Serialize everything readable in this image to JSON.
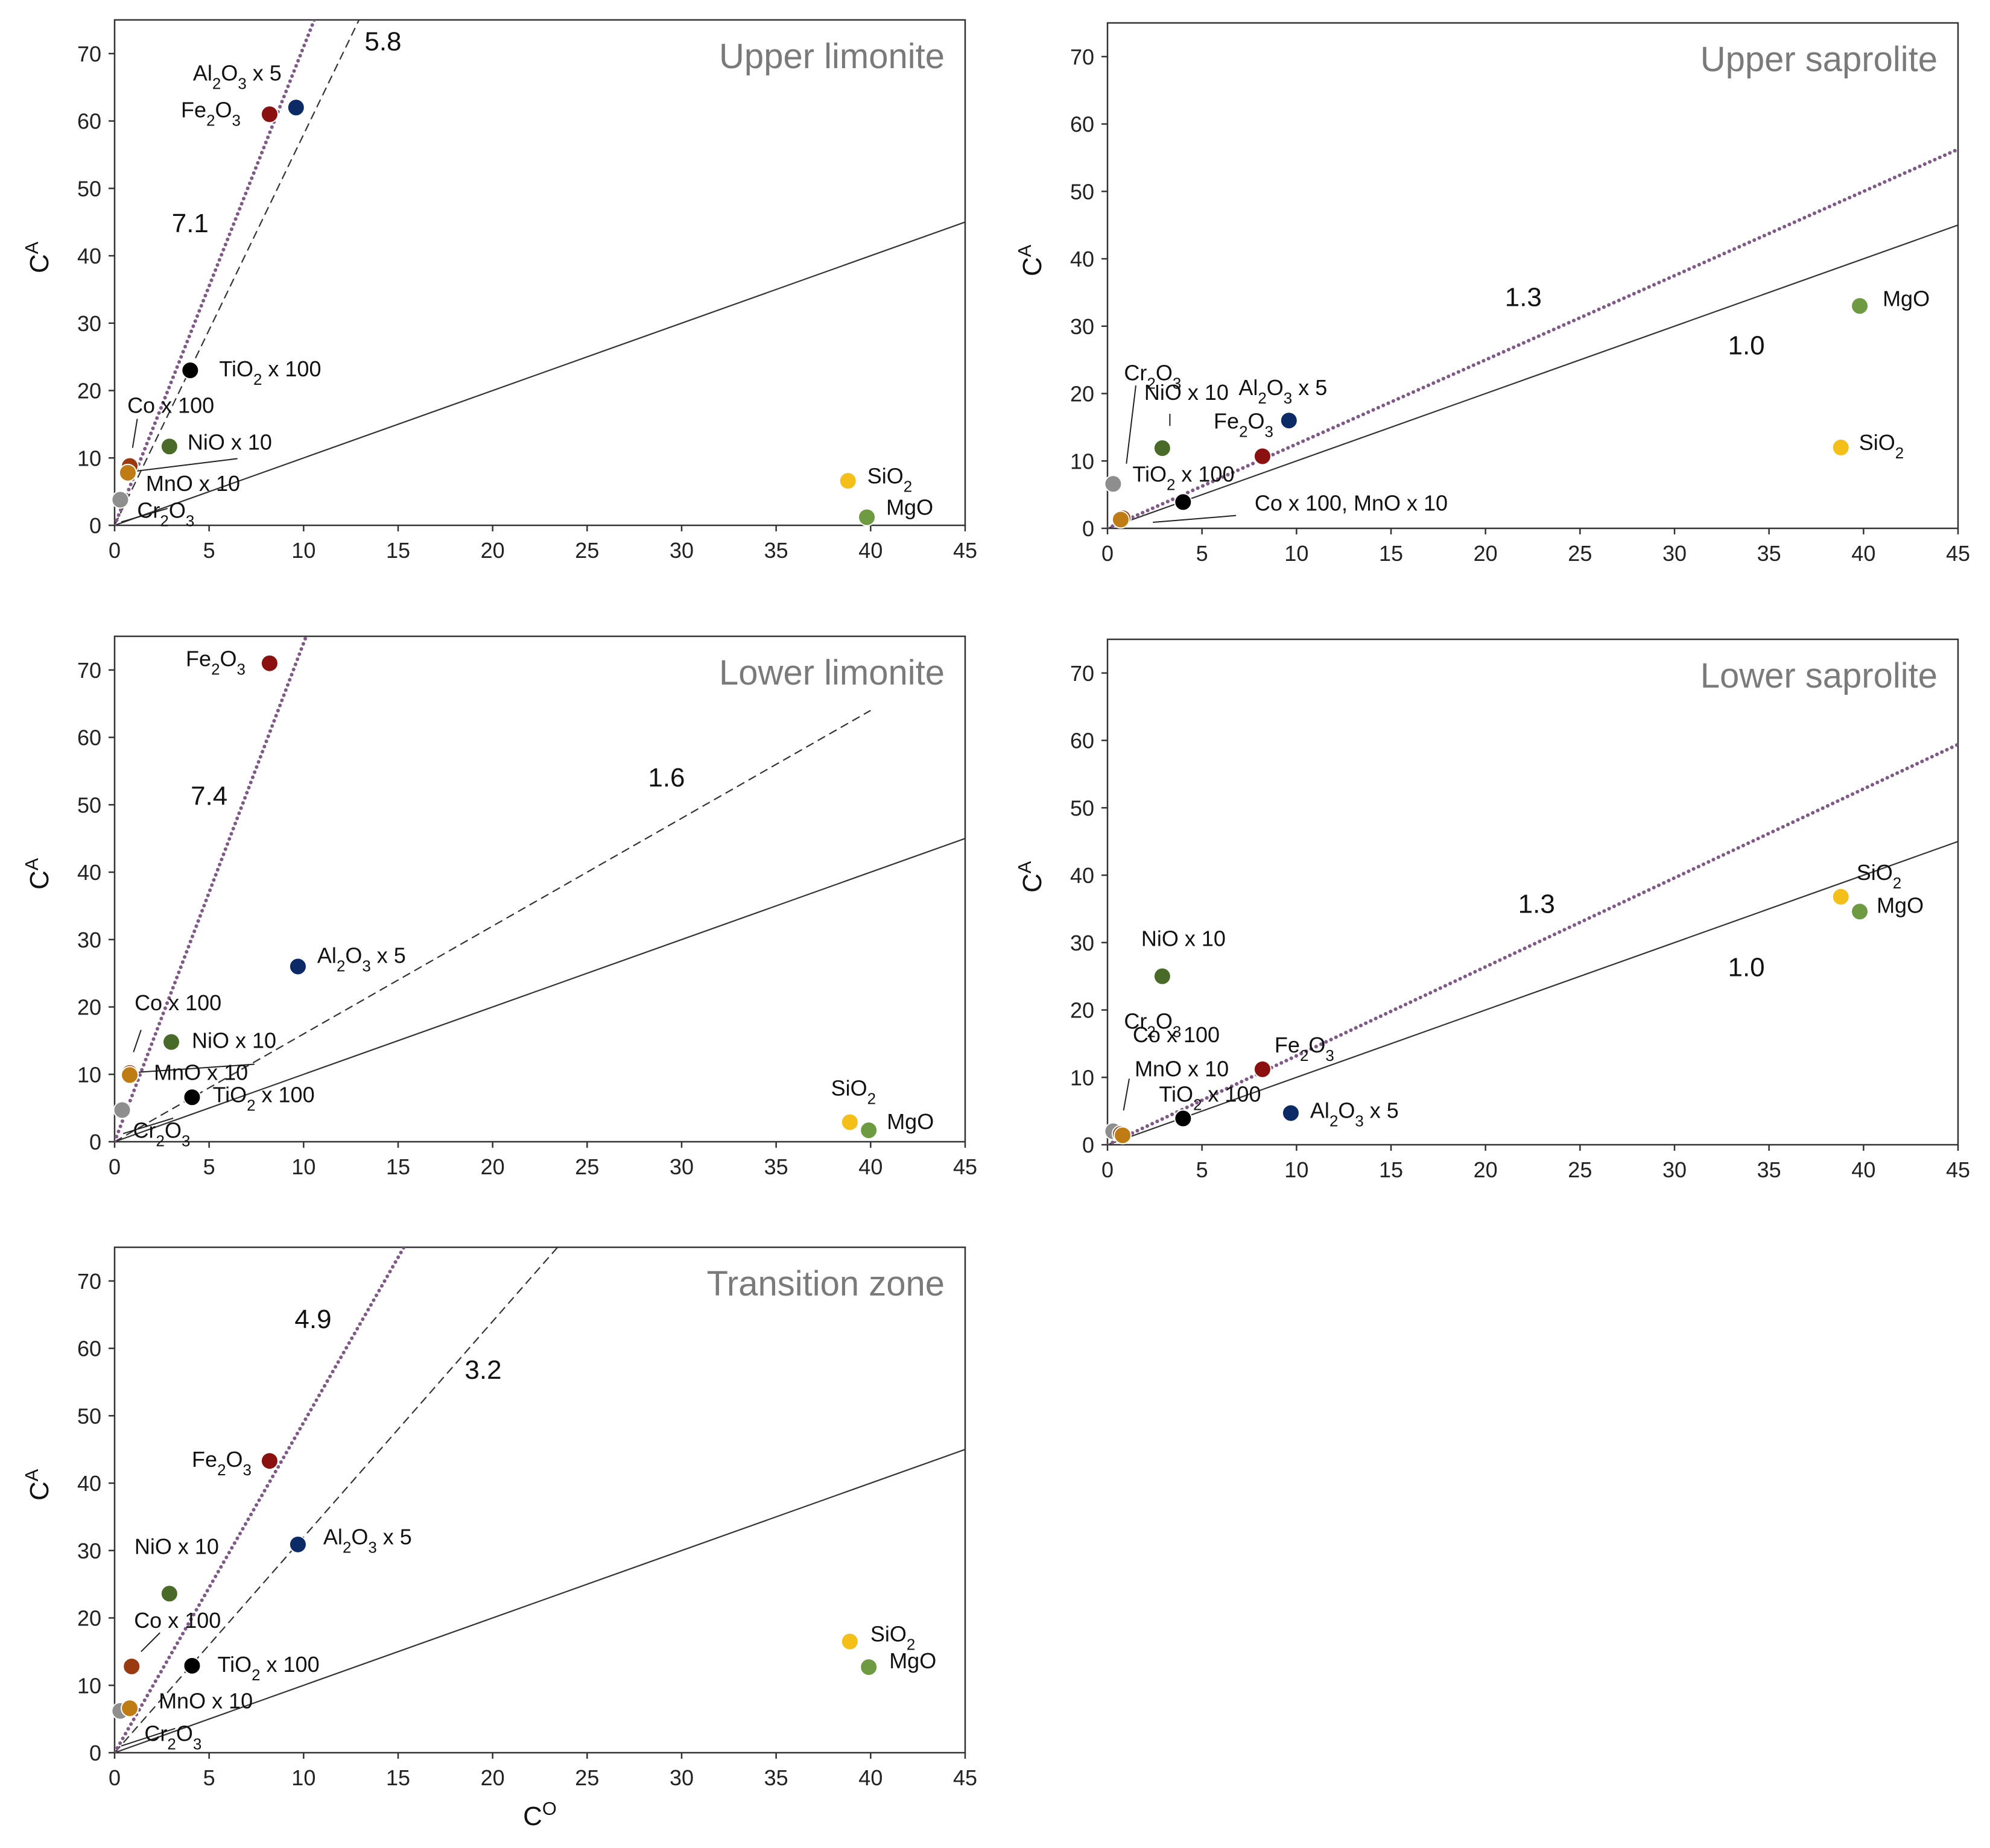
{
  "chart_data": [
    {
      "type": "scatter",
      "title": "Upper limonite",
      "xlabel": "",
      "ylabel": "CA",
      "xlim": [
        0,
        45
      ],
      "ylim": [
        0,
        75
      ],
      "xticks": [
        0,
        5,
        10,
        15,
        20,
        25,
        30,
        35,
        40,
        45
      ],
      "yticks": [
        0,
        10,
        20,
        30,
        40,
        50,
        60,
        70
      ],
      "lines": [
        {
          "style": "solid",
          "slope": 1.0,
          "label": ""
        },
        {
          "style": "dashed",
          "slope": 5.8,
          "label": "5.8"
        },
        {
          "style": "dotted",
          "slope": 7.1,
          "label": "7.1"
        }
      ],
      "points": [
        {
          "name": "Al2O3 x 5",
          "x": 9.6,
          "y": 62,
          "color": "#0b2a66",
          "label": "Al2O3 x 5"
        },
        {
          "name": "Fe2O3",
          "x": 8.2,
          "y": 61,
          "color": "#8b1010",
          "label": "Fe2O3"
        },
        {
          "name": "TiO2 x 100",
          "x": 4.0,
          "y": 23,
          "color": "#000000",
          "label": "TiO2 x 100"
        },
        {
          "name": "NiO x 10",
          "x": 2.9,
          "y": 11.7,
          "color": "#4a6a2a",
          "label": "NiO x 10"
        },
        {
          "name": "Co x 100",
          "x": 0.8,
          "y": 8.8,
          "color": "#9a3a10",
          "label": "Co x 100"
        },
        {
          "name": "MnO x 10",
          "x": 0.7,
          "y": 7.8,
          "color": "#c07c14",
          "label": "MnO x 10"
        },
        {
          "name": "Cr2O3",
          "x": 0.3,
          "y": 3.8,
          "color": "#8e8e8e",
          "label": "Cr2O3"
        },
        {
          "name": "SiO2",
          "x": 38.8,
          "y": 6.6,
          "color": "#f5bf1a",
          "label": "SiO2"
        },
        {
          "name": "MgO",
          "x": 39.8,
          "y": 1.2,
          "color": "#6e9a42",
          "label": "MgO"
        }
      ]
    },
    {
      "type": "scatter",
      "title": "Upper saprolite",
      "xlabel": "",
      "ylabel": "CA",
      "xlim": [
        0,
        45
      ],
      "ylim": [
        0,
        75
      ],
      "xticks": [
        0,
        5,
        10,
        15,
        20,
        25,
        30,
        35,
        40,
        45
      ],
      "yticks": [
        0,
        10,
        20,
        30,
        40,
        50,
        60,
        70
      ],
      "lines": [
        {
          "style": "solid",
          "slope": 1.0,
          "label": "1.0"
        },
        {
          "style": "dotted",
          "slope": 1.25,
          "label": "1.3"
        }
      ],
      "points": [
        {
          "name": "MgO",
          "x": 39.8,
          "y": 33,
          "color": "#6e9a42",
          "label": "MgO"
        },
        {
          "name": "SiO2",
          "x": 38.8,
          "y": 12,
          "color": "#f5bf1a",
          "label": "SiO2"
        },
        {
          "name": "Al2O3 x 5",
          "x": 9.6,
          "y": 16,
          "color": "#0b2a66",
          "label": "Al2O3 x 5"
        },
        {
          "name": "Fe2O3",
          "x": 8.2,
          "y": 10.7,
          "color": "#8b1010",
          "label": "Fe2O3"
        },
        {
          "name": "NiO x 10",
          "x": 2.9,
          "y": 11.9,
          "color": "#4a6a2a",
          "label": "NiO x 10"
        },
        {
          "name": "TiO2 x 100",
          "x": 4.0,
          "y": 3.9,
          "color": "#000000",
          "label": "TiO2 x 100"
        },
        {
          "name": "Cr2O3",
          "x": 0.3,
          "y": 6.6,
          "color": "#8e8e8e",
          "label": "Cr2O3"
        },
        {
          "name": "Co x 100",
          "x": 0.8,
          "y": 1.5,
          "color": "#9a3a10",
          "label": ""
        },
        {
          "name": "MnO x 10",
          "x": 0.7,
          "y": 1.3,
          "color": "#c07c14",
          "label": "Co x 100, MnO x 10"
        }
      ]
    },
    {
      "type": "scatter",
      "title": "Lower limonite",
      "xlabel": "",
      "ylabel": "CA",
      "xlim": [
        0,
        45
      ],
      "ylim": [
        0,
        75
      ],
      "xticks": [
        0,
        5,
        10,
        15,
        20,
        25,
        30,
        35,
        40,
        45
      ],
      "yticks": [
        0,
        10,
        20,
        30,
        40,
        50,
        60,
        70
      ],
      "lines": [
        {
          "style": "solid",
          "slope": 1.0,
          "label": ""
        },
        {
          "style": "dashed",
          "slope": 1.6,
          "label": "1.6"
        },
        {
          "style": "dotted",
          "slope": 7.4,
          "label": "7.4"
        }
      ],
      "points": [
        {
          "name": "Fe2O3",
          "x": 8.2,
          "y": 71,
          "color": "#8b1010",
          "label": "Fe2O3"
        },
        {
          "name": "Al2O3 x 5",
          "x": 9.7,
          "y": 26,
          "color": "#0b2a66",
          "label": "Al2O3 x 5"
        },
        {
          "name": "NiO x 10",
          "x": 3.0,
          "y": 14.8,
          "color": "#4a6a2a",
          "label": "NiO x 10"
        },
        {
          "name": "Co x 100",
          "x": 0.8,
          "y": 10.2,
          "color": "#9a3a10",
          "label": "Co x 100"
        },
        {
          "name": "MnO x 10",
          "x": 0.8,
          "y": 9.9,
          "color": "#c07c14",
          "label": "MnO x 10"
        },
        {
          "name": "TiO2 x 100",
          "x": 4.1,
          "y": 6.6,
          "color": "#000000",
          "label": "TiO2 x 100"
        },
        {
          "name": "Cr2O3",
          "x": 0.4,
          "y": 4.7,
          "color": "#8e8e8e",
          "label": "Cr2O3"
        },
        {
          "name": "SiO2",
          "x": 38.9,
          "y": 2.9,
          "color": "#f5bf1a",
          "label": "SiO2"
        },
        {
          "name": "MgO",
          "x": 39.9,
          "y": 1.7,
          "color": "#6e9a42",
          "label": "MgO"
        }
      ]
    },
    {
      "type": "scatter",
      "title": "Lower saprolite",
      "xlabel": "",
      "ylabel": "CA",
      "xlim": [
        0,
        45
      ],
      "ylim": [
        0,
        75
      ],
      "xticks": [
        0,
        5,
        10,
        15,
        20,
        25,
        30,
        35,
        40,
        45
      ],
      "yticks": [
        0,
        10,
        20,
        30,
        40,
        50,
        60,
        70
      ],
      "lines": [
        {
          "style": "solid",
          "slope": 1.0,
          "label": "1.0"
        },
        {
          "style": "dotted",
          "slope": 1.32,
          "label": "1.3"
        }
      ],
      "points": [
        {
          "name": "SiO2",
          "x": 38.8,
          "y": 36.8,
          "color": "#f5bf1a",
          "label": "SiO2"
        },
        {
          "name": "MgO",
          "x": 39.8,
          "y": 34.6,
          "color": "#6e9a42",
          "label": "MgO"
        },
        {
          "name": "NiO x 10",
          "x": 2.9,
          "y": 25,
          "color": "#4a6a2a",
          "label": "NiO x 10"
        },
        {
          "name": "Fe2O3",
          "x": 8.2,
          "y": 11.2,
          "color": "#8b1010",
          "label": "Fe2O3"
        },
        {
          "name": "Al2O3 x 5",
          "x": 9.7,
          "y": 4.7,
          "color": "#0b2a66",
          "label": "Al2O3 x 5"
        },
        {
          "name": "TiO2 x 100",
          "x": 4.0,
          "y": 3.9,
          "color": "#000000",
          "label": "TiO2 x 100"
        },
        {
          "name": "Cr2O3",
          "x": 0.3,
          "y": 2.0,
          "color": "#8e8e8e",
          "label": "Cr2O3"
        },
        {
          "name": "Co x 100",
          "x": 0.7,
          "y": 1.6,
          "color": "#9a3a10",
          "label": "Co x 100"
        },
        {
          "name": "MnO x 10",
          "x": 0.8,
          "y": 1.4,
          "color": "#c07c14",
          "label": "MnO x 10"
        }
      ]
    },
    {
      "type": "scatter",
      "title": "Transition zone",
      "xlabel": "CO",
      "ylabel": "CA",
      "xlim": [
        0,
        45
      ],
      "ylim": [
        0,
        75
      ],
      "xticks": [
        0,
        5,
        10,
        15,
        20,
        25,
        30,
        35,
        40,
        45
      ],
      "yticks": [
        0,
        10,
        20,
        30,
        40,
        50,
        60,
        70
      ],
      "lines": [
        {
          "style": "solid",
          "slope": 1.0,
          "label": ""
        },
        {
          "style": "dashed",
          "slope": 3.2,
          "label": "3.2"
        },
        {
          "style": "dotted",
          "slope": 4.9,
          "label": "4.9"
        }
      ],
      "points": [
        {
          "name": "Fe2O3",
          "x": 8.2,
          "y": 43.3,
          "color": "#8b1010",
          "label": "Fe2O3"
        },
        {
          "name": "Al2O3 x 5",
          "x": 9.7,
          "y": 30.9,
          "color": "#0b2a66",
          "label": "Al2O3 x 5"
        },
        {
          "name": "NiO x 10",
          "x": 2.9,
          "y": 23.6,
          "color": "#4a6a2a",
          "label": "NiO x 10"
        },
        {
          "name": "Co x 100",
          "x": 0.9,
          "y": 12.8,
          "color": "#9a3a10",
          "label": "Co x 100"
        },
        {
          "name": "TiO2 x 100",
          "x": 4.1,
          "y": 12.9,
          "color": "#000000",
          "label": "TiO2 x 100"
        },
        {
          "name": "MnO x 10",
          "x": 0.8,
          "y": 6.6,
          "color": "#c07c14",
          "label": "MnO x 10"
        },
        {
          "name": "Cr2O3",
          "x": 0.3,
          "y": 6.2,
          "color": "#8e8e8e",
          "label": "Cr2O3"
        },
        {
          "name": "SiO2",
          "x": 38.9,
          "y": 16.5,
          "color": "#f5bf1a",
          "label": "SiO2"
        },
        {
          "name": "MgO",
          "x": 39.9,
          "y": 12.7,
          "color": "#6e9a42",
          "label": "MgO"
        }
      ]
    }
  ],
  "style": {
    "line_color": "#333333",
    "dotted_color": "#7f5a86",
    "title_color": "#7a7a7a"
  }
}
